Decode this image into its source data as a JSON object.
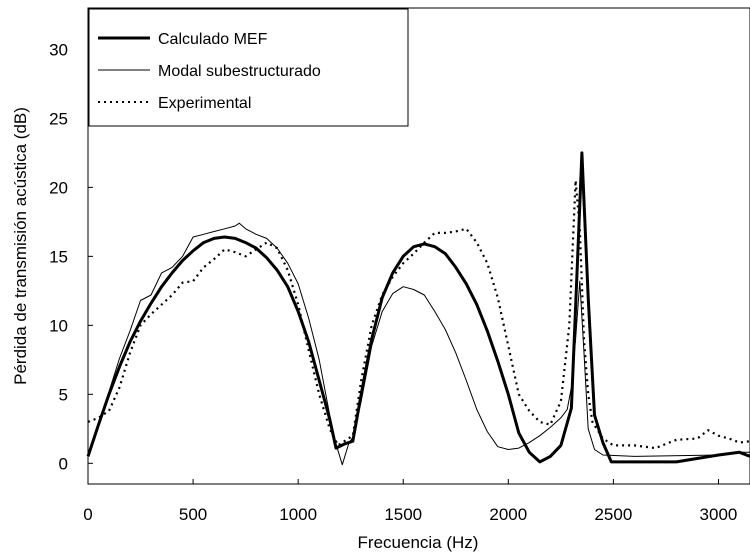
{
  "chart_data": {
    "type": "line",
    "xlabel": "Frecuencia (Hz)",
    "ylabel": "Pérdida de transmisión acústica (dB)",
    "xlim": [
      0,
      3150
    ],
    "ylim": [
      -1.5,
      33
    ],
    "xticks": [
      0,
      500,
      1000,
      1500,
      2000,
      2500,
      3000
    ],
    "yticks": [
      0,
      5,
      10,
      15,
      20,
      25,
      30
    ],
    "grid": false,
    "legend_position": "top-left",
    "series": [
      {
        "name": "Calculado MEF",
        "style": "thick",
        "color": "#000000",
        "points": [
          [
            0,
            0.5
          ],
          [
            50,
            2.8
          ],
          [
            100,
            5.0
          ],
          [
            150,
            7.0
          ],
          [
            200,
            8.8
          ],
          [
            250,
            10.3
          ],
          [
            300,
            11.6
          ],
          [
            350,
            12.8
          ],
          [
            400,
            13.8
          ],
          [
            450,
            14.7
          ],
          [
            500,
            15.4
          ],
          [
            550,
            16.0
          ],
          [
            600,
            16.3
          ],
          [
            650,
            16.4
          ],
          [
            700,
            16.3
          ],
          [
            750,
            16.0
          ],
          [
            800,
            15.6
          ],
          [
            850,
            14.9
          ],
          [
            900,
            14.0
          ],
          [
            950,
            12.8
          ],
          [
            1000,
            11.0
          ],
          [
            1050,
            8.8
          ],
          [
            1100,
            6.0
          ],
          [
            1150,
            3.2
          ],
          [
            1180,
            1.1
          ],
          [
            1220,
            1.4
          ],
          [
            1260,
            1.6
          ],
          [
            1300,
            5.0
          ],
          [
            1350,
            9.0
          ],
          [
            1400,
            12.0
          ],
          [
            1450,
            13.8
          ],
          [
            1500,
            15.0
          ],
          [
            1550,
            15.7
          ],
          [
            1600,
            15.9
          ],
          [
            1650,
            15.7
          ],
          [
            1700,
            15.2
          ],
          [
            1750,
            14.2
          ],
          [
            1800,
            13.0
          ],
          [
            1850,
            11.5
          ],
          [
            1900,
            9.6
          ],
          [
            1950,
            7.4
          ],
          [
            2000,
            5.0
          ],
          [
            2050,
            2.2
          ],
          [
            2100,
            0.8
          ],
          [
            2150,
            0.1
          ],
          [
            2200,
            0.5
          ],
          [
            2250,
            1.3
          ],
          [
            2300,
            4.0
          ],
          [
            2330,
            15.0
          ],
          [
            2350,
            22.5
          ],
          [
            2380,
            12.0
          ],
          [
            2410,
            3.5
          ],
          [
            2450,
            1.5
          ],
          [
            2490,
            0.1
          ],
          [
            2800,
            0.1
          ],
          [
            3000,
            0.6
          ],
          [
            3100,
            0.8
          ],
          [
            3150,
            0.5
          ]
        ]
      },
      {
        "name": "Modal subestructurado",
        "style": "thin",
        "color": "#000000",
        "points": [
          [
            0,
            0.5
          ],
          [
            50,
            2.8
          ],
          [
            100,
            5.2
          ],
          [
            150,
            7.6
          ],
          [
            200,
            9.6
          ],
          [
            250,
            11.8
          ],
          [
            300,
            12.2
          ],
          [
            350,
            13.8
          ],
          [
            400,
            14.2
          ],
          [
            450,
            15.0
          ],
          [
            500,
            16.4
          ],
          [
            550,
            16.6
          ],
          [
            600,
            16.8
          ],
          [
            650,
            17.0
          ],
          [
            700,
            17.2
          ],
          [
            720,
            17.4
          ],
          [
            750,
            17.0
          ],
          [
            800,
            16.6
          ],
          [
            850,
            16.3
          ],
          [
            900,
            15.6
          ],
          [
            950,
            14.5
          ],
          [
            1000,
            13.0
          ],
          [
            1050,
            10.5
          ],
          [
            1100,
            7.5
          ],
          [
            1150,
            3.5
          ],
          [
            1180,
            1.4
          ],
          [
            1210,
            -0.1
          ],
          [
            1240,
            1.4
          ],
          [
            1260,
            1.9
          ],
          [
            1300,
            4.5
          ],
          [
            1350,
            8.5
          ],
          [
            1400,
            11.0
          ],
          [
            1450,
            12.3
          ],
          [
            1500,
            12.8
          ],
          [
            1550,
            12.6
          ],
          [
            1600,
            12.2
          ],
          [
            1650,
            11.0
          ],
          [
            1700,
            9.7
          ],
          [
            1750,
            8.0
          ],
          [
            1800,
            6.0
          ],
          [
            1850,
            3.9
          ],
          [
            1900,
            2.3
          ],
          [
            1950,
            1.2
          ],
          [
            2000,
            1.0
          ],
          [
            2050,
            1.1
          ],
          [
            2100,
            1.5
          ],
          [
            2150,
            2.0
          ],
          [
            2200,
            2.6
          ],
          [
            2250,
            3.3
          ],
          [
            2280,
            3.9
          ],
          [
            2300,
            5.5
          ],
          [
            2320,
            9.0
          ],
          [
            2340,
            13.2
          ],
          [
            2360,
            8.0
          ],
          [
            2380,
            2.5
          ],
          [
            2410,
            1.0
          ],
          [
            2450,
            0.6
          ],
          [
            2600,
            0.5
          ],
          [
            3000,
            0.6
          ],
          [
            3100,
            0.8
          ],
          [
            3150,
            0.8
          ]
        ]
      },
      {
        "name": "Experimental",
        "style": "dotted",
        "color": "#000000",
        "points": [
          [
            0,
            3.0
          ],
          [
            50,
            3.3
          ],
          [
            100,
            3.8
          ],
          [
            150,
            5.5
          ],
          [
            200,
            8.0
          ],
          [
            250,
            10.0
          ],
          [
            300,
            10.8
          ],
          [
            350,
            11.5
          ],
          [
            400,
            12.2
          ],
          [
            450,
            13.1
          ],
          [
            500,
            13.2
          ],
          [
            550,
            14.2
          ],
          [
            600,
            14.8
          ],
          [
            650,
            15.5
          ],
          [
            700,
            15.3
          ],
          [
            750,
            15.0
          ],
          [
            800,
            15.5
          ],
          [
            850,
            16.0
          ],
          [
            900,
            15.6
          ],
          [
            950,
            14.0
          ],
          [
            1000,
            11.5
          ],
          [
            1050,
            8.2
          ],
          [
            1100,
            5.0
          ],
          [
            1150,
            2.5
          ],
          [
            1190,
            1.3
          ],
          [
            1220,
            1.6
          ],
          [
            1260,
            2.0
          ],
          [
            1300,
            6.0
          ],
          [
            1350,
            10.0
          ],
          [
            1400,
            12.2
          ],
          [
            1450,
            13.5
          ],
          [
            1500,
            14.5
          ],
          [
            1550,
            15.2
          ],
          [
            1600,
            16.0
          ],
          [
            1650,
            16.7
          ],
          [
            1700,
            16.7
          ],
          [
            1750,
            16.8
          ],
          [
            1800,
            17.0
          ],
          [
            1850,
            16.0
          ],
          [
            1900,
            14.5
          ],
          [
            1950,
            12.0
          ],
          [
            2000,
            8.5
          ],
          [
            2050,
            5.0
          ],
          [
            2100,
            3.8
          ],
          [
            2150,
            3.0
          ],
          [
            2200,
            2.8
          ],
          [
            2250,
            4.5
          ],
          [
            2290,
            10.0
          ],
          [
            2320,
            20.5
          ],
          [
            2340,
            17.0
          ],
          [
            2360,
            9.0
          ],
          [
            2380,
            5.0
          ],
          [
            2400,
            3.0
          ],
          [
            2450,
            1.8
          ],
          [
            2500,
            1.3
          ],
          [
            2600,
            1.3
          ],
          [
            2700,
            1.1
          ],
          [
            2800,
            1.7
          ],
          [
            2900,
            1.8
          ],
          [
            2950,
            2.4
          ],
          [
            3000,
            2.0
          ],
          [
            3050,
            1.8
          ],
          [
            3100,
            1.5
          ],
          [
            3150,
            1.6
          ]
        ]
      }
    ]
  }
}
